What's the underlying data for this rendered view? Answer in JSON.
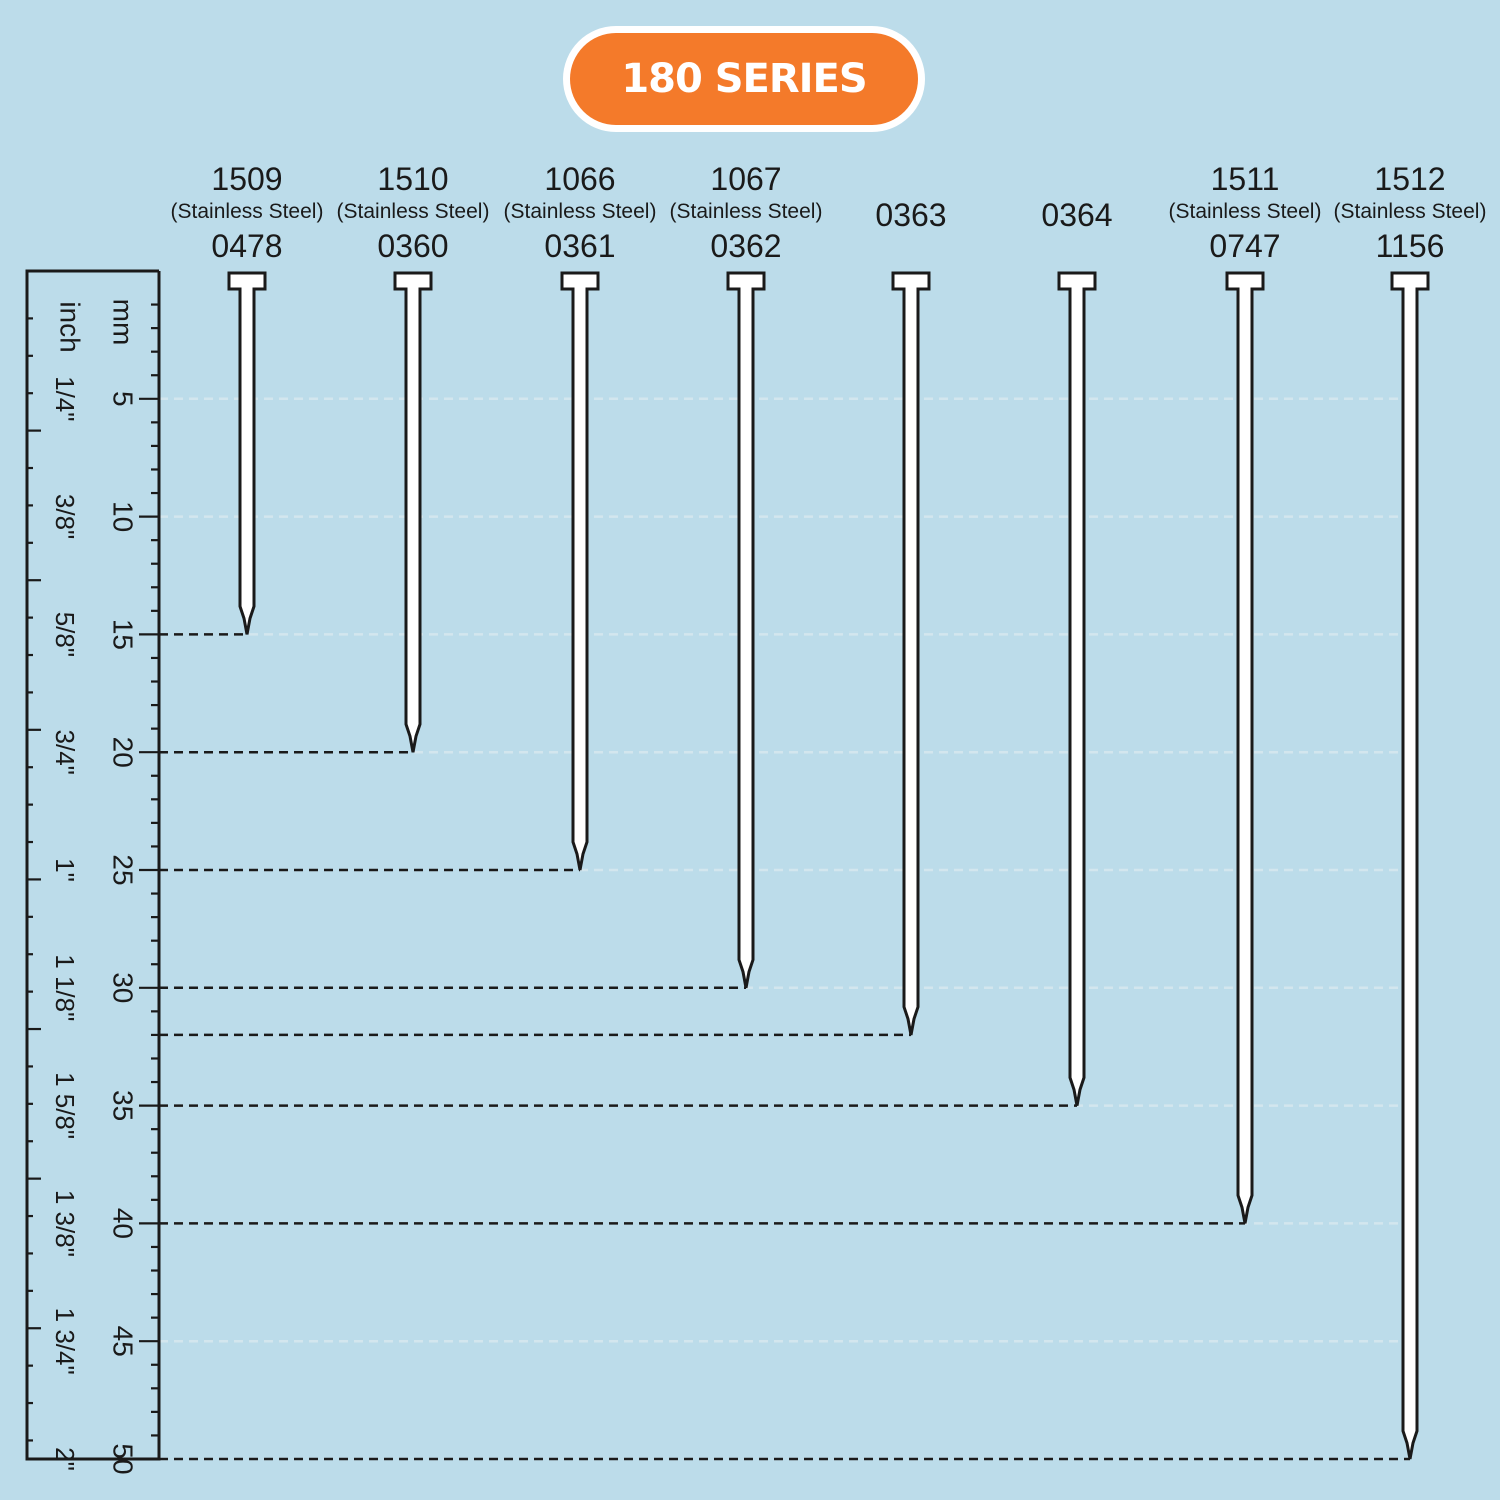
{
  "title": "180 SERIES",
  "ruler": {
    "mm_label": "mm",
    "inch_label": "inch",
    "mm_ticks": [
      {
        "mm": 5,
        "label": "5"
      },
      {
        "mm": 10,
        "label": "10"
      },
      {
        "mm": 15,
        "label": "15"
      },
      {
        "mm": 20,
        "label": "20"
      },
      {
        "mm": 25,
        "label": "25"
      },
      {
        "mm": 30,
        "label": "30"
      },
      {
        "mm": 35,
        "label": "35"
      },
      {
        "mm": 40,
        "label": "40"
      },
      {
        "mm": 45,
        "label": "45"
      },
      {
        "mm": 50,
        "label": "50"
      }
    ],
    "inch_ticks": [
      {
        "mm": 5,
        "label": "1/4\""
      },
      {
        "mm": 10,
        "label": "3/8\""
      },
      {
        "mm": 15,
        "label": "5/8\""
      },
      {
        "mm": 20,
        "label": "3/4\""
      },
      {
        "mm": 25,
        "label": "1\""
      },
      {
        "mm": 30,
        "label": "1 1/8\""
      },
      {
        "mm": 35,
        "label": "1 5/8\""
      },
      {
        "mm": 40,
        "label": "1 3/8\""
      },
      {
        "mm": 45,
        "label": "1 3/4\""
      },
      {
        "mm": 50,
        "label": "2\""
      }
    ]
  },
  "chart_data": {
    "type": "bar",
    "title": "180 SERIES",
    "ylabel": "mm",
    "ylim": [
      0,
      50
    ],
    "grid": true,
    "nails": [
      {
        "code_a": "1509",
        "material": "(Stainless Steel)",
        "code_b": "0478",
        "length_mm": 15
      },
      {
        "code_a": "1510",
        "material": "(Stainless Steel)",
        "code_b": "0360",
        "length_mm": 20
      },
      {
        "code_a": "1066",
        "material": "(Stainless Steel)",
        "code_b": "0361",
        "length_mm": 25
      },
      {
        "code_a": "1067",
        "material": "(Stainless Steel)",
        "code_b": "0362",
        "length_mm": 30
      },
      {
        "code_a": "0363",
        "material": "",
        "code_b": "",
        "length_mm": 32
      },
      {
        "code_a": "0364",
        "material": "",
        "code_b": "",
        "length_mm": 35
      },
      {
        "code_a": "1511",
        "material": "(Stainless Steel)",
        "code_b": "0747",
        "length_mm": 40
      },
      {
        "code_a": "1512",
        "material": "(Stainless Steel)",
        "code_b": "1156",
        "length_mm": 50
      }
    ]
  },
  "colors": {
    "background": "#bcdcea",
    "badge": "#f47a2a",
    "ink": "#1a1a1a",
    "nail": "#ffffff"
  }
}
